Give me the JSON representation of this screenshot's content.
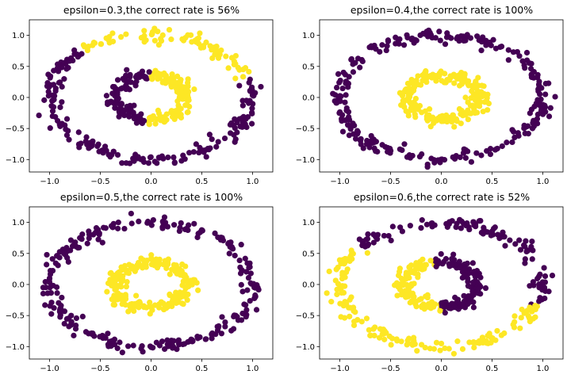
{
  "figure": {
    "background": "#ffffff"
  },
  "chart_data": [
    {
      "type": "scatter",
      "title": "epsilon=0.3,the correct rate is 56%",
      "xlabel": "",
      "ylabel": "",
      "xlim": [
        -1.2,
        1.2
      ],
      "ylim": [
        -1.2,
        1.25
      ],
      "xticks": [
        -1.0,
        -0.5,
        0.0,
        0.5,
        1.0
      ],
      "yticks": [
        -1.0,
        -0.5,
        0.0,
        0.5,
        1.0
      ],
      "xtick_labels": [
        "−1.0",
        "−0.5",
        "0.0",
        "0.5",
        "1.0"
      ],
      "ytick_labels": [
        "−1.0",
        "−0.5",
        "0.0",
        "0.5",
        "1.0"
      ],
      "grid": false,
      "colors": {
        "class_0": "#440154",
        "class_1": "#fde725"
      },
      "rings": [
        {
          "radius": 1.0,
          "noise": 0.05,
          "points": 260,
          "class_1_arc_deg": [
            20,
            130
          ]
        },
        {
          "radius": 0.36,
          "noise": 0.05,
          "points": 220,
          "class_1_arc_deg": [
            -95,
            90
          ]
        }
      ]
    },
    {
      "type": "scatter",
      "title": "epsilon=0.4,the correct rate is 100%",
      "xlabel": "",
      "ylabel": "",
      "xlim": [
        -1.2,
        1.2
      ],
      "ylim": [
        -1.2,
        1.25
      ],
      "xticks": [
        -1.0,
        -0.5,
        0.0,
        0.5,
        1.0
      ],
      "yticks": [
        -1.0,
        -0.5,
        0.0,
        0.5,
        1.0
      ],
      "xtick_labels": [
        "−1.0",
        "−0.5",
        "0.0",
        "0.5",
        "1.0"
      ],
      "ytick_labels": [
        "−1.0",
        "−0.5",
        "0.0",
        "0.5",
        "1.0"
      ],
      "grid": false,
      "colors": {
        "class_0": "#440154",
        "class_1": "#fde725"
      },
      "rings": [
        {
          "radius": 1.0,
          "noise": 0.05,
          "points": 260,
          "class": 0
        },
        {
          "radius": 0.36,
          "noise": 0.05,
          "points": 220,
          "class": 1
        }
      ]
    },
    {
      "type": "scatter",
      "title": "epsilon=0.5,the correct rate is 100%",
      "xlabel": "",
      "ylabel": "",
      "xlim": [
        -1.2,
        1.2
      ],
      "ylim": [
        -1.2,
        1.25
      ],
      "xticks": [
        -1.0,
        -0.5,
        0.0,
        0.5,
        1.0
      ],
      "yticks": [
        -1.0,
        -0.5,
        0.0,
        0.5,
        1.0
      ],
      "xtick_labels": [
        "−1.0",
        "−0.5",
        "0.0",
        "0.5",
        "1.0"
      ],
      "ytick_labels": [
        "−1.0",
        "−0.5",
        "0.0",
        "0.5",
        "1.0"
      ],
      "grid": false,
      "colors": {
        "class_0": "#440154",
        "class_1": "#fde725"
      },
      "rings": [
        {
          "radius": 1.0,
          "noise": 0.05,
          "points": 260,
          "class": 0
        },
        {
          "radius": 0.36,
          "noise": 0.05,
          "points": 220,
          "class": 1
        }
      ]
    },
    {
      "type": "scatter",
      "title": "epsilon=0.6,the correct rate is 52%",
      "xlabel": "",
      "ylabel": "",
      "xlim": [
        -1.2,
        1.2
      ],
      "ylim": [
        -1.2,
        1.25
      ],
      "xticks": [
        -1.0,
        -0.5,
        0.0,
        0.5,
        1.0
      ],
      "yticks": [
        -1.0,
        -0.5,
        0.0,
        0.5,
        1.0
      ],
      "xtick_labels": [
        "−1.0",
        "−0.5",
        "0.0",
        "0.5",
        "1.0"
      ],
      "ytick_labels": [
        "−1.0",
        "−0.5",
        "0.0",
        "0.5",
        "1.0"
      ],
      "grid": false,
      "colors": {
        "class_0": "#440154",
        "class_1": "#fde725"
      },
      "rings": [
        {
          "radius": 1.0,
          "noise": 0.05,
          "points": 260,
          "class_1_arc_deg": [
            145,
            340
          ]
        },
        {
          "radius": 0.36,
          "noise": 0.05,
          "points": 220,
          "class_1_arc_deg": [
            100,
            270
          ]
        }
      ]
    }
  ]
}
